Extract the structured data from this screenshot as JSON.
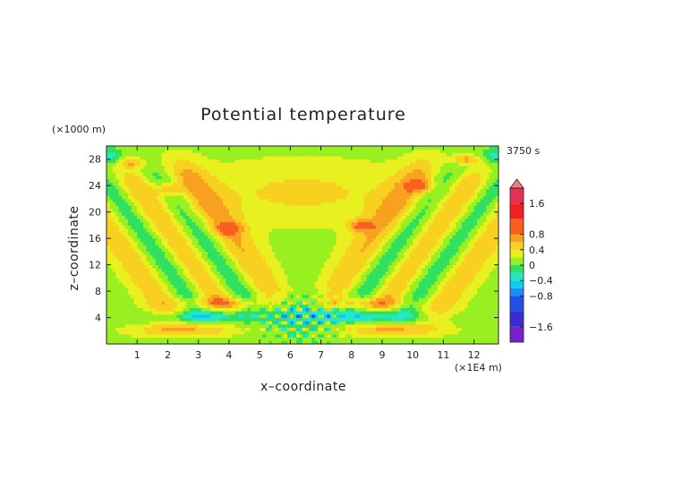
{
  "chart_data": {
    "type": "heatmap",
    "title": "Potential temperature",
    "xlabel": "x–coordinate",
    "ylabel": "z–coordinate",
    "x_unit": "(×1E4 m)",
    "y_unit": "(×1000 m)",
    "time_label": "3750 s",
    "xlim": [
      0,
      12.8
    ],
    "ylim": [
      0,
      30
    ],
    "x_ticks": [
      1,
      2,
      3,
      4,
      5,
      6,
      7,
      8,
      9,
      10,
      11,
      12
    ],
    "y_ticks": [
      4,
      8,
      12,
      16,
      20,
      24,
      28
    ],
    "colorbar": {
      "ticks": [
        1.6,
        0.8,
        0.4,
        0,
        -0.4,
        -0.8,
        -1.6
      ],
      "tick_labels": [
        "1.6",
        "0.8",
        "0.4",
        "0",
        "−0.4",
        "−0.8",
        "−1.6"
      ],
      "levels": [
        -2.0,
        -1.6,
        -1.2,
        -0.8,
        -0.6,
        -0.4,
        -0.2,
        0,
        0.2,
        0.4,
        0.6,
        0.8,
        1.2,
        1.6,
        2.0
      ],
      "colors": [
        "#7a1fd0",
        "#3a2cd0",
        "#2050e8",
        "#1890f8",
        "#10c8f0",
        "#20e8c8",
        "#30e060",
        "#98f020",
        "#e8f020",
        "#f8d020",
        "#f8a020",
        "#f86020",
        "#f02020",
        "#e83050",
        "#f08080"
      ]
    },
    "background_value": 0.1,
    "features": [
      {
        "kind": "band",
        "x1": 4.0,
        "z1": 4.5,
        "x2": 0.6,
        "z2": 26.5,
        "offset": -1.7,
        "amp": 0.55,
        "sigma": 0.55
      },
      {
        "kind": "band",
        "x1": 4.0,
        "z1": 4.5,
        "x2": 0.6,
        "z2": 26.5,
        "offset": -0.85,
        "amp": -0.5,
        "sigma": 0.45
      },
      {
        "kind": "band",
        "x1": 4.0,
        "z1": 4.5,
        "x2": 0.6,
        "z2": 26.5,
        "offset": 0.0,
        "amp": 0.6,
        "sigma": 0.5
      },
      {
        "kind": "band",
        "x1": 4.0,
        "z1": 4.5,
        "x2": 0.6,
        "z2": 26.5,
        "offset": 0.85,
        "amp": -0.45,
        "sigma": 0.45
      },
      {
        "kind": "band",
        "x1": 4.0,
        "z1": 4.5,
        "x2": 0.6,
        "z2": 26.5,
        "offset": 1.7,
        "amp": 0.5,
        "sigma": 0.5
      },
      {
        "kind": "band",
        "x1": 8.8,
        "z1": 4.5,
        "x2": 12.2,
        "z2": 26.5,
        "offset": -1.7,
        "amp": 0.5,
        "sigma": 0.5
      },
      {
        "kind": "band",
        "x1": 8.8,
        "z1": 4.5,
        "x2": 12.2,
        "z2": 26.5,
        "offset": -0.85,
        "amp": -0.45,
        "sigma": 0.45
      },
      {
        "kind": "band",
        "x1": 8.8,
        "z1": 4.5,
        "x2": 12.2,
        "z2": 26.5,
        "offset": 0.0,
        "amp": 0.6,
        "sigma": 0.5
      },
      {
        "kind": "band",
        "x1": 8.8,
        "z1": 4.5,
        "x2": 12.2,
        "z2": 26.5,
        "offset": 0.85,
        "amp": -0.5,
        "sigma": 0.45
      },
      {
        "kind": "band",
        "x1": 8.8,
        "z1": 4.5,
        "x2": 12.2,
        "z2": 26.5,
        "offset": 1.7,
        "amp": 0.55,
        "sigma": 0.55
      },
      {
        "kind": "blob",
        "x": 2.0,
        "z": 23.5,
        "sx": 0.3,
        "sz": 0.6,
        "amp": 0.55
      },
      {
        "kind": "blob",
        "x": 4.0,
        "z": 17.5,
        "sx": 0.3,
        "sz": 0.6,
        "amp": 0.55
      },
      {
        "kind": "blob",
        "x": 8.3,
        "z": 18.0,
        "sx": 0.3,
        "sz": 0.6,
        "amp": 0.55
      },
      {
        "kind": "blob",
        "x": 10.3,
        "z": 24.0,
        "sx": 0.3,
        "sz": 0.6,
        "amp": 0.55
      },
      {
        "kind": "blob",
        "x": 11.7,
        "z": 28.0,
        "sx": 0.3,
        "sz": 0.5,
        "amp": 0.6
      },
      {
        "kind": "blob",
        "x": 0.9,
        "z": 27.5,
        "sx": 0.3,
        "sz": 0.5,
        "amp": 0.5
      },
      {
        "kind": "blob",
        "x": 2.5,
        "z": 2.1,
        "sx": 1.2,
        "sz": 0.7,
        "amp": 0.55
      },
      {
        "kind": "blob",
        "x": 9.3,
        "z": 2.1,
        "sx": 1.2,
        "sz": 0.7,
        "amp": 0.55
      },
      {
        "kind": "blob",
        "x": 3.2,
        "z": 4.2,
        "sx": 1.3,
        "sz": 0.6,
        "amp": -0.5
      },
      {
        "kind": "blob",
        "x": 8.6,
        "z": 4.2,
        "sx": 1.3,
        "sz": 0.6,
        "amp": -0.5
      },
      {
        "kind": "blob",
        "x": 3.8,
        "z": 6.2,
        "sx": 1.0,
        "sz": 0.6,
        "amp": 0.45
      },
      {
        "kind": "blob",
        "x": 8.3,
        "z": 6.2,
        "sx": 1.0,
        "sz": 0.6,
        "amp": 0.45
      },
      {
        "kind": "blob",
        "x": 6.4,
        "z": 5.0,
        "sx": 0.9,
        "sz": 3.2,
        "amp": -0.25
      },
      {
        "kind": "blob",
        "x": 6.4,
        "z": 23.0,
        "sx": 2.6,
        "sz": 3.5,
        "amp": 0.35
      },
      {
        "kind": "checker",
        "x": 6.4,
        "z": 4.0,
        "sx": 0.9,
        "sz": 2.0,
        "amp": 0.75,
        "kx": 4.2,
        "kz": 2.0
      },
      {
        "kind": "blob",
        "x": 0.15,
        "z": 28.5,
        "sx": 0.25,
        "sz": 0.8,
        "amp": -0.4
      },
      {
        "kind": "blob",
        "x": 12.65,
        "z": 28.5,
        "sx": 0.25,
        "sz": 0.8,
        "amp": -0.4
      }
    ]
  }
}
